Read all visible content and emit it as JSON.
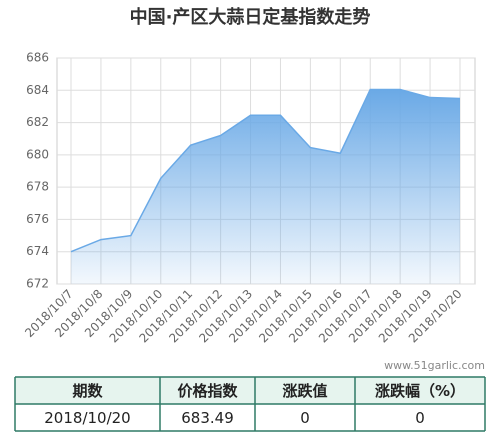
{
  "chart_data": {
    "type": "area",
    "title": "中国·产区大蒜日定基指数走势",
    "categories": [
      "2018/10/7",
      "2018/10/8",
      "2018/10/9",
      "2018/10/10",
      "2018/10/11",
      "2018/10/12",
      "2018/10/13",
      "2018/10/14",
      "2018/10/15",
      "2018/10/16",
      "2018/10/17",
      "2018/10/18",
      "2018/10/19",
      "2018/10/20"
    ],
    "values": [
      674.0,
      674.75,
      675.0,
      678.55,
      680.6,
      681.2,
      682.45,
      682.45,
      680.45,
      680.1,
      684.05,
      684.05,
      683.55,
      683.49
    ],
    "color": "#6aa9e6",
    "ylim": [
      672,
      686
    ],
    "yticks": [
      672,
      674,
      676,
      678,
      680,
      682,
      684,
      686
    ],
    "grid": true
  },
  "watermark": "www.51garlic.com",
  "table": {
    "header": [
      "期数",
      "价格指数",
      "涨跌值",
      "涨跌幅（%）"
    ],
    "rows": [
      [
        "2018/10/20",
        "683.49",
        "0",
        "0"
      ]
    ]
  }
}
